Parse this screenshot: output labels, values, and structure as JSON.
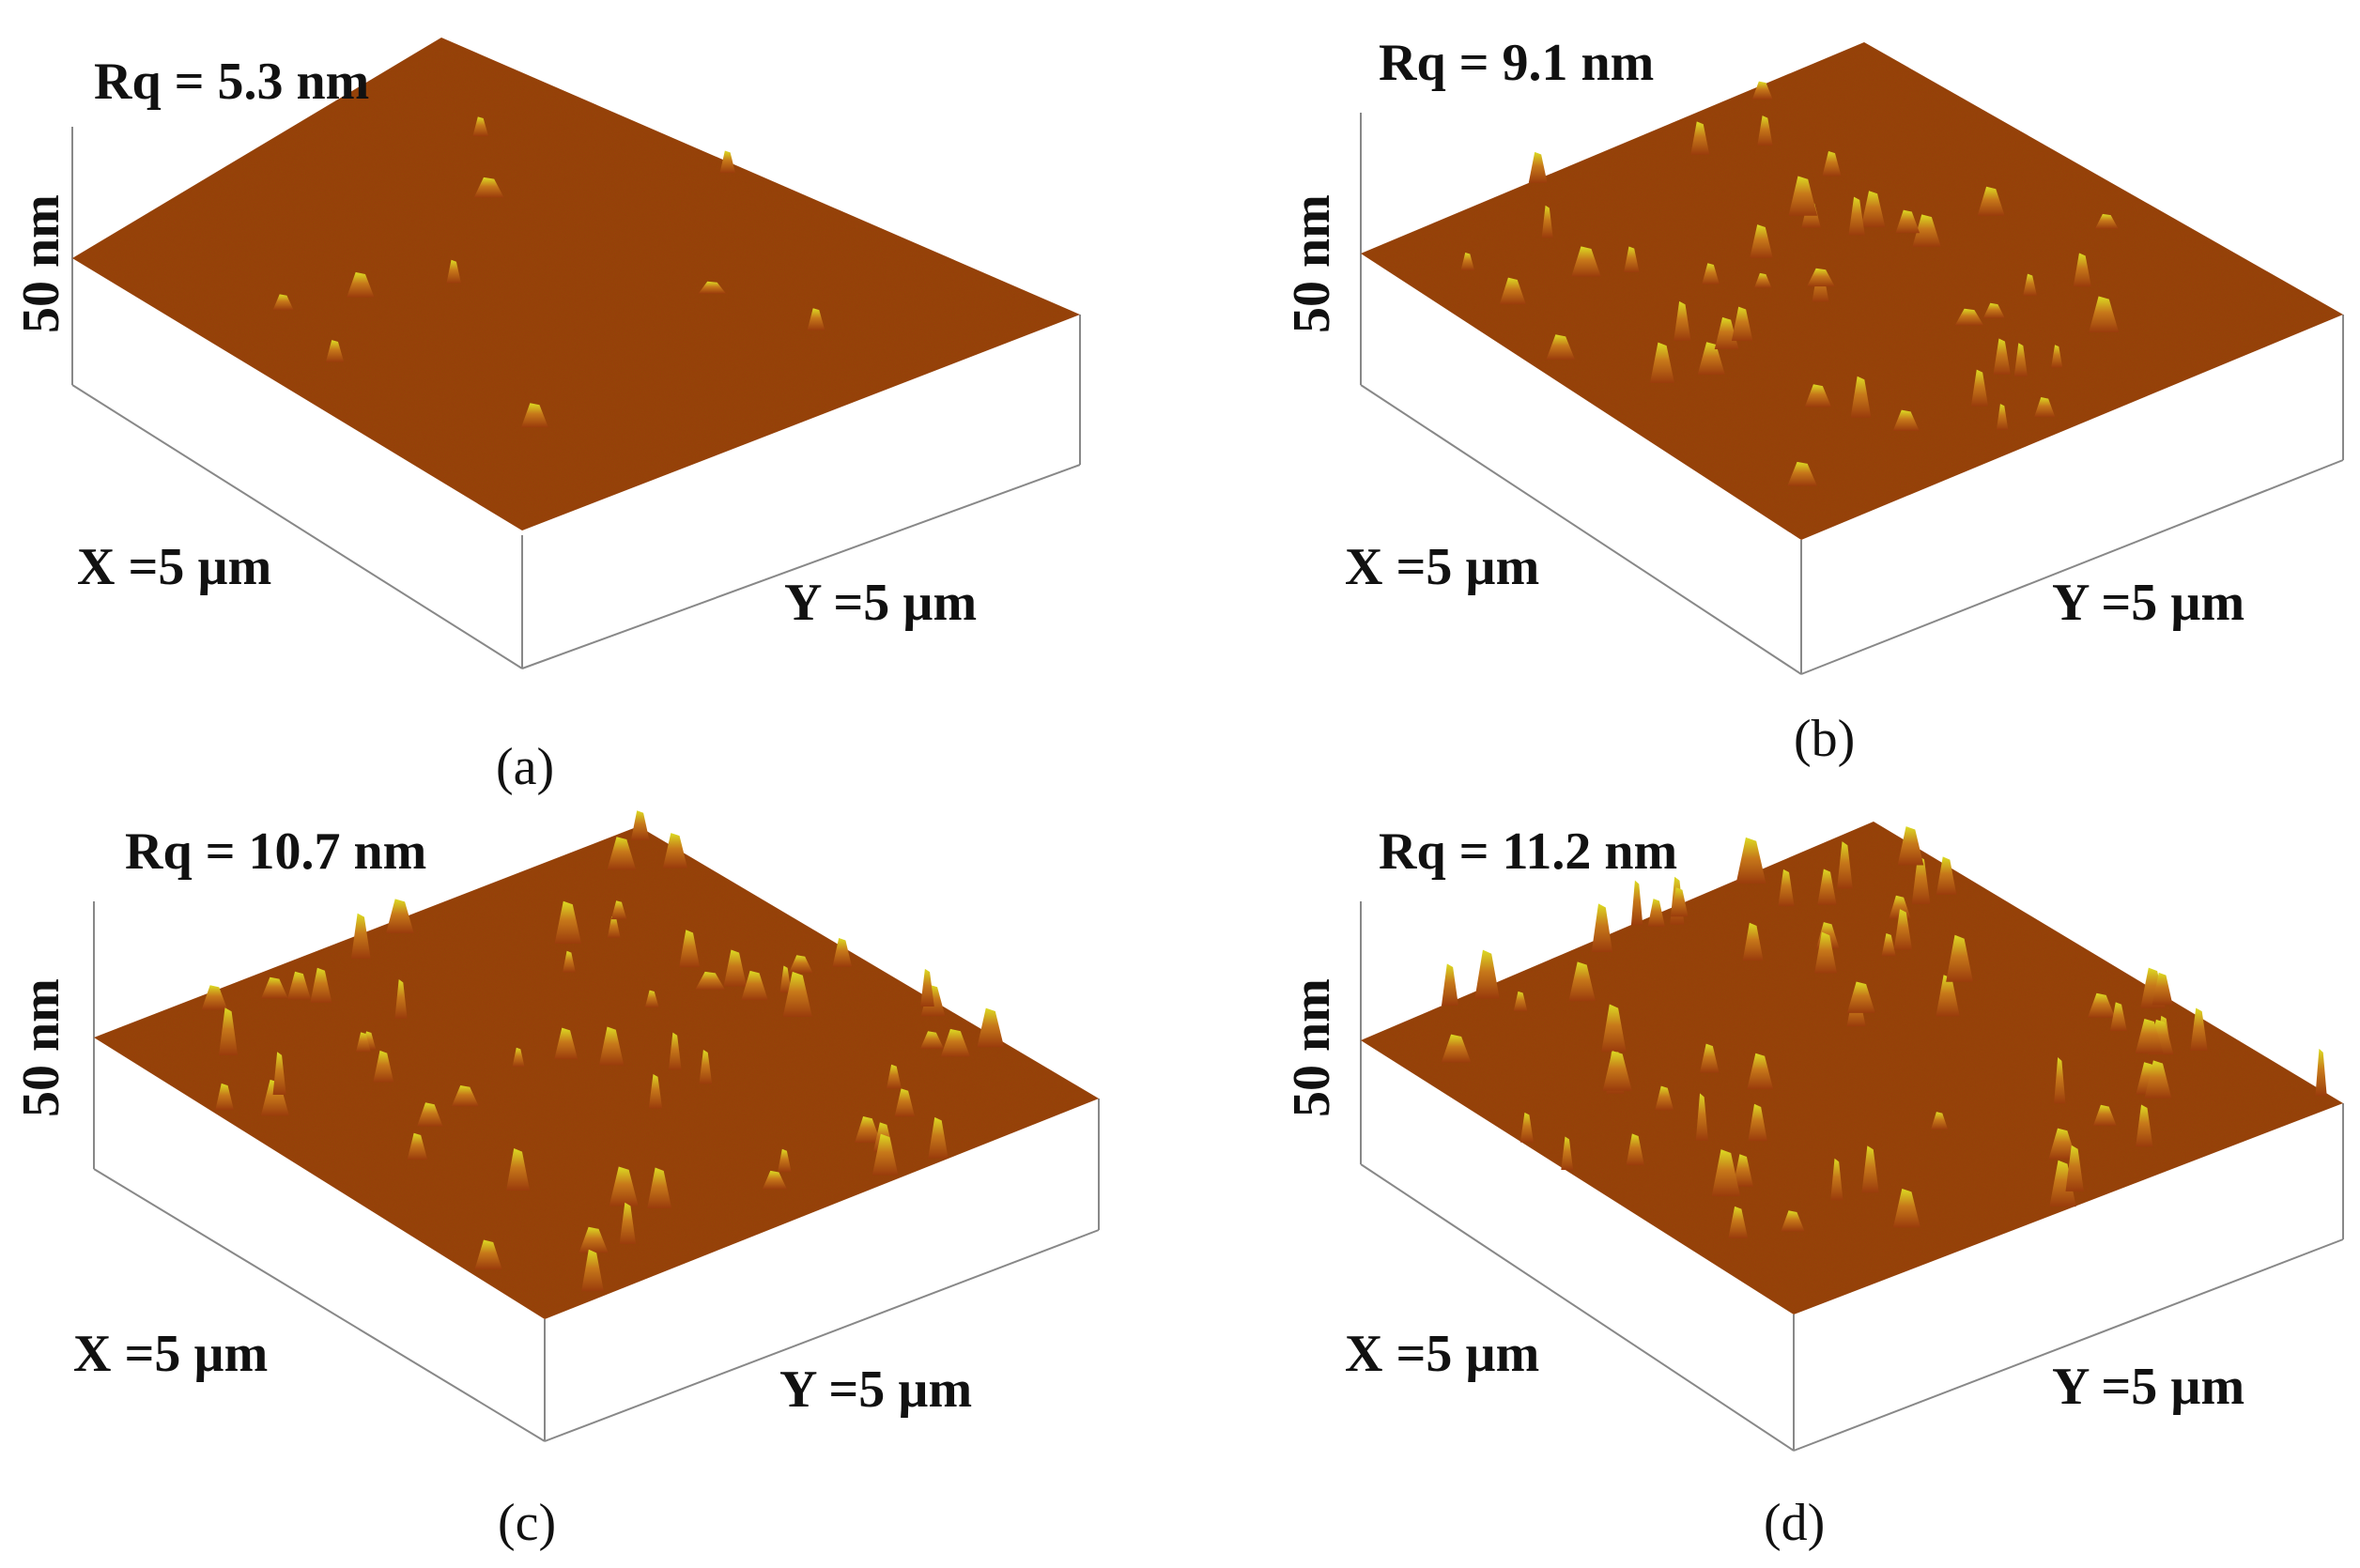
{
  "panels": [
    {
      "rq": "Rq = 5.3 nm",
      "z_label": "50 nm",
      "x_label": "X =5 µm",
      "y_label": "Y =5 µm",
      "caption": "(a)",
      "roughness_nm": 5.3
    },
    {
      "rq": "Rq = 9.1 nm",
      "z_label": "50 nm",
      "x_label": "X =5 µm",
      "y_label": "Y =5 µm",
      "caption": "(b)",
      "roughness_nm": 9.1
    },
    {
      "rq": "Rq = 10.7 nm",
      "z_label": "50 nm",
      "x_label": "X =5 µm",
      "y_label": "Y =5 µm",
      "caption": "(c)",
      "roughness_nm": 10.7
    },
    {
      "rq": "Rq = 11.2 nm",
      "z_label": "50 nm",
      "x_label": "X =5 µm",
      "y_label": "Y =5 µm",
      "caption": "(d)",
      "roughness_nm": 11.2
    }
  ],
  "colors": {
    "surface_base": "#9a3c0c",
    "surface_dark": "#6e2604",
    "peak_tip": "#d8d820",
    "axis": "#888888"
  }
}
